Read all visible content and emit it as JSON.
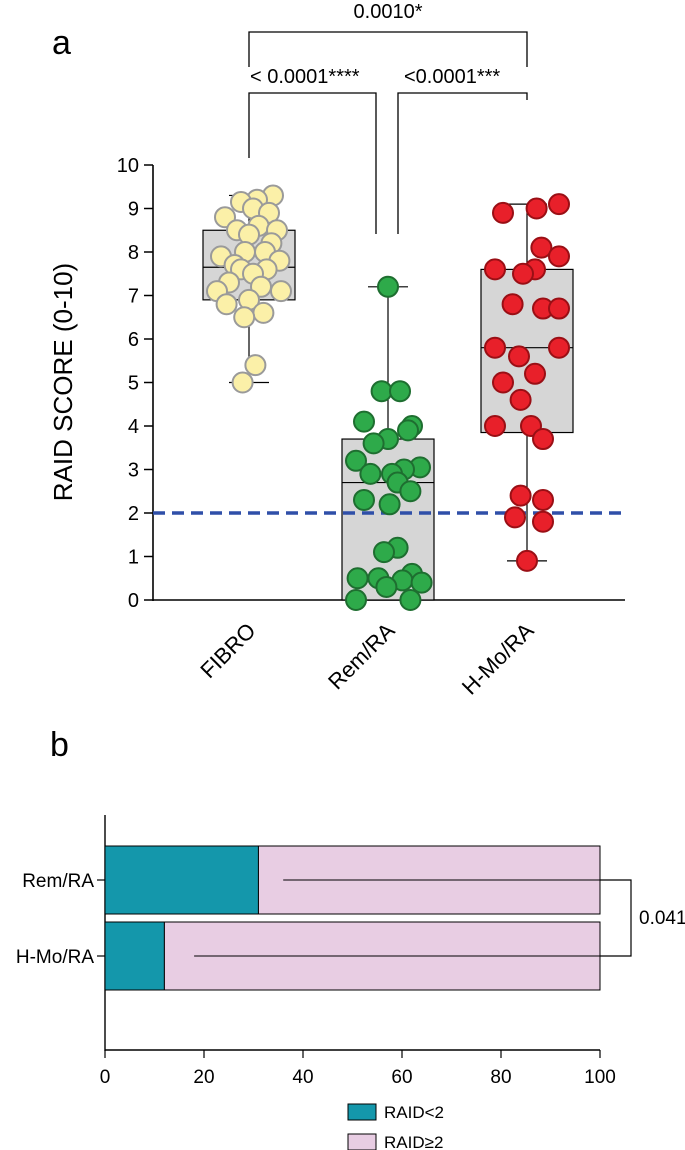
{
  "panel_a_label": "a",
  "panel_b_label": "b",
  "chart_data": [
    {
      "type": "box",
      "title": "",
      "ylabel": "RAID SCORE (0-10)",
      "xlabel": "",
      "ylim": [
        0,
        10
      ],
      "yticks": [
        "0",
        "1",
        "2",
        "3",
        "4",
        "5",
        "6",
        "7",
        "8",
        "9",
        "10"
      ],
      "categories": [
        "FIBRO",
        "Rem/RA",
        "H-Mo/RA"
      ],
      "threshold": {
        "value": 2,
        "color": "#2f4fa8",
        "style": "dashed"
      },
      "series": [
        {
          "name": "FIBRO",
          "color": "#fbf0a8",
          "stroke": "#9a9a9a",
          "box": {
            "min": 5.0,
            "q1": 6.9,
            "median": 7.65,
            "q3": 8.5,
            "max": 9.3
          },
          "points": [
            9.3,
            9.2,
            9.15,
            9.0,
            8.9,
            8.8,
            8.6,
            8.5,
            8.5,
            8.4,
            8.2,
            8.0,
            8.0,
            7.9,
            7.8,
            7.7,
            7.6,
            7.6,
            7.5,
            7.3,
            7.2,
            7.1,
            7.1,
            6.9,
            6.8,
            6.6,
            6.5,
            5.4,
            5.0
          ],
          "offsets": [
            0.3,
            0.1,
            -0.1,
            0.05,
            0.25,
            -0.3,
            0.12,
            -0.15,
            0.35,
            0.0,
            0.28,
            -0.05,
            0.2,
            -0.35,
            0.38,
            -0.18,
            -0.1,
            0.22,
            0.05,
            -0.25,
            0.15,
            -0.4,
            0.4,
            0.0,
            -0.28,
            0.18,
            -0.06,
            0.08,
            -0.08
          ]
        },
        {
          "name": "Rem/RA",
          "color": "#2eaa4a",
          "stroke": "#1e6e30",
          "box": {
            "min": 0.0,
            "q1": 0.0,
            "median": 2.7,
            "q3": 3.7,
            "max": 7.2
          },
          "points": [
            7.2,
            4.8,
            4.8,
            4.1,
            4.0,
            3.9,
            3.7,
            3.6,
            3.2,
            3.05,
            3.0,
            2.9,
            2.9,
            2.7,
            2.5,
            2.3,
            2.2,
            1.2,
            1.1,
            0.6,
            0.5,
            0.5,
            0.45,
            0.4,
            0.3,
            0.0,
            0.0
          ],
          "offsets": [
            0.0,
            -0.08,
            0.15,
            -0.3,
            0.3,
            0.25,
            0.0,
            -0.18,
            -0.4,
            0.4,
            0.2,
            -0.22,
            0.05,
            0.12,
            0.28,
            -0.3,
            0.02,
            0.12,
            -0.05,
            0.3,
            -0.38,
            -0.12,
            0.18,
            0.42,
            -0.02,
            -0.4,
            0.28
          ]
        },
        {
          "name": "H-Mo/RA",
          "color": "#e8202a",
          "stroke": "#9a0f15",
          "box": {
            "min": 0.9,
            "q1": 3.85,
            "median": 5.8,
            "q3": 7.6,
            "max": 9.1
          },
          "points": [
            9.1,
            9.0,
            8.9,
            8.1,
            7.9,
            7.6,
            7.6,
            7.5,
            6.8,
            6.7,
            6.7,
            5.8,
            5.8,
            5.6,
            5.2,
            5.0,
            4.6,
            4.0,
            4.0,
            3.7,
            2.4,
            2.3,
            1.9,
            1.8,
            0.9
          ],
          "offsets": [
            0.4,
            0.12,
            -0.3,
            0.18,
            0.4,
            -0.4,
            0.1,
            -0.05,
            -0.18,
            0.2,
            0.4,
            -0.4,
            0.4,
            -0.1,
            0.1,
            -0.3,
            -0.08,
            -0.4,
            0.05,
            0.2,
            -0.08,
            0.2,
            -0.15,
            0.2,
            0.0
          ]
        }
      ],
      "annotations": [
        {
          "label": "0.0010*",
          "from": "FIBRO",
          "to": "H-Mo/RA"
        },
        {
          "label": "< 0.0001****",
          "from": "FIBRO",
          "to": "Rem/RA"
        },
        {
          "label": "<0.0001***",
          "from": "Rem/RA",
          "to": "H-Mo/RA"
        }
      ]
    },
    {
      "type": "bar",
      "orientation": "horizontal",
      "stacked": true,
      "categories": [
        "Rem/RA",
        "H-Mo/RA"
      ],
      "xlim": [
        0,
        100
      ],
      "xticks": [
        "0",
        "20",
        "40",
        "60",
        "80",
        "100"
      ],
      "series": [
        {
          "name": "RAID<2",
          "color": "#1497ab",
          "values": [
            31,
            12
          ]
        },
        {
          "name": "RAID≥2",
          "color": "#e8cde3",
          "values": [
            69,
            88
          ]
        }
      ],
      "inner_lines": [
        {
          "from": 36,
          "to": 100
        },
        {
          "from": 18,
          "to": 100
        }
      ],
      "comparison": {
        "label": "0.041"
      },
      "legend": {
        "placement": "bottom",
        "entries": [
          "RAID<2",
          "RAID≥2"
        ]
      }
    }
  ]
}
